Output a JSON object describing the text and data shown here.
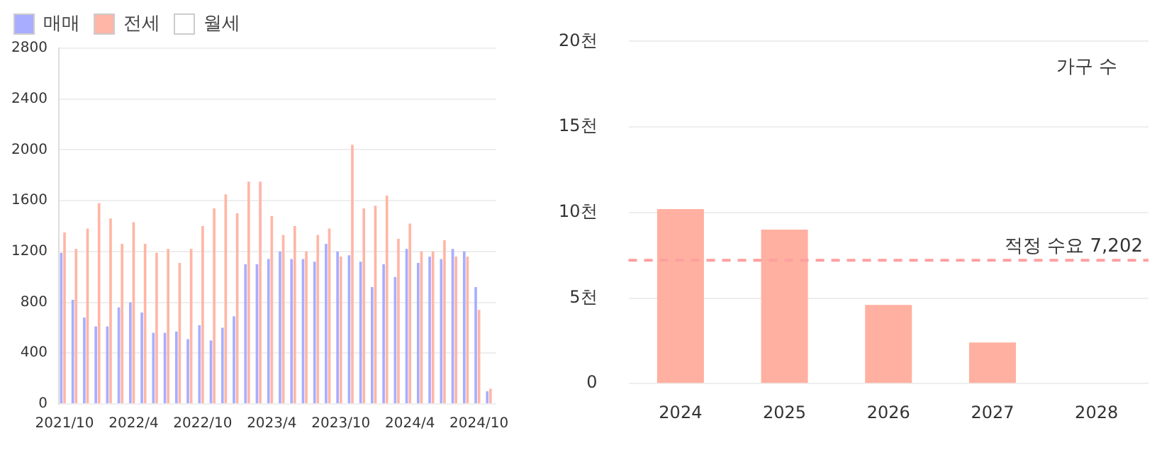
{
  "chart_data": [
    {
      "type": "bar",
      "categories": [
        "2021/10",
        null,
        null,
        null,
        null,
        null,
        "2022/4",
        null,
        null,
        null,
        null,
        null,
        "2022/10",
        null,
        null,
        null,
        null,
        null,
        "2023/4",
        null,
        null,
        null,
        null,
        null,
        "2023/10",
        null,
        null,
        null,
        null,
        null,
        "2024/4",
        null,
        null,
        null,
        null,
        null,
        "2024/10",
        null
      ],
      "series": [
        {
          "name": "매매",
          "color": "#a9adff",
          "values": [
            1190,
            820,
            680,
            610,
            610,
            760,
            800,
            720,
            560,
            560,
            570,
            510,
            620,
            500,
            600,
            690,
            1100,
            1100,
            1140,
            1200,
            1140,
            1140,
            1120,
            1260,
            1200,
            1170,
            1120,
            920,
            1100,
            1000,
            1220,
            1110,
            1160,
            1140,
            1220,
            1200,
            920,
            100
          ]
        },
        {
          "name": "전세",
          "color": "#ffb6a6",
          "values": [
            1350,
            1220,
            1380,
            1580,
            1460,
            1260,
            1430,
            1260,
            1190,
            1220,
            1110,
            1220,
            1400,
            1540,
            1650,
            1500,
            1750,
            1750,
            1480,
            1330,
            1400,
            1200,
            1330,
            1380,
            1160,
            2040,
            1540,
            1560,
            1640,
            1300,
            1420,
            1200,
            1200,
            1290,
            1160,
            1160,
            740,
            120
          ]
        },
        {
          "name": "월세",
          "color": "#ffffff",
          "values": [
            null,
            null,
            null,
            null,
            null,
            null,
            null,
            null,
            null,
            null,
            null,
            null,
            null,
            null,
            null,
            null,
            null,
            null,
            null,
            null,
            null,
            null,
            null,
            null,
            null,
            null,
            null,
            null,
            null,
            null,
            null,
            null,
            null,
            null,
            null,
            null,
            null,
            null
          ]
        }
      ],
      "ylim": [
        0,
        2800
      ],
      "yticks": [
        0,
        400,
        800,
        1200,
        1600,
        2000,
        2400,
        2800
      ],
      "grid": "y",
      "legend": "top left"
    },
    {
      "type": "bar",
      "categories": [
        "2024",
        "2025",
        "2026",
        "2027",
        "2028"
      ],
      "values": [
        10.2,
        9.0,
        4.6,
        2.4,
        null
      ],
      "color": "#ffb0a0",
      "ylim": [
        0,
        20
      ],
      "yticks": [
        0,
        {
          "value": 5,
          "label": "5천"
        },
        {
          "value": 10,
          "label": "10천"
        },
        {
          "value": 15,
          "label": "15천"
        },
        {
          "value": 20,
          "label": "20천"
        }
      ],
      "grid": "y",
      "ref_lines": [
        {
          "axis": "y",
          "value": 7.202,
          "label": "적정 수요 7,202",
          "color": "#ff9f9f",
          "line_style": "dashed"
        }
      ],
      "annotations": [
        "가구 수"
      ]
    }
  ]
}
